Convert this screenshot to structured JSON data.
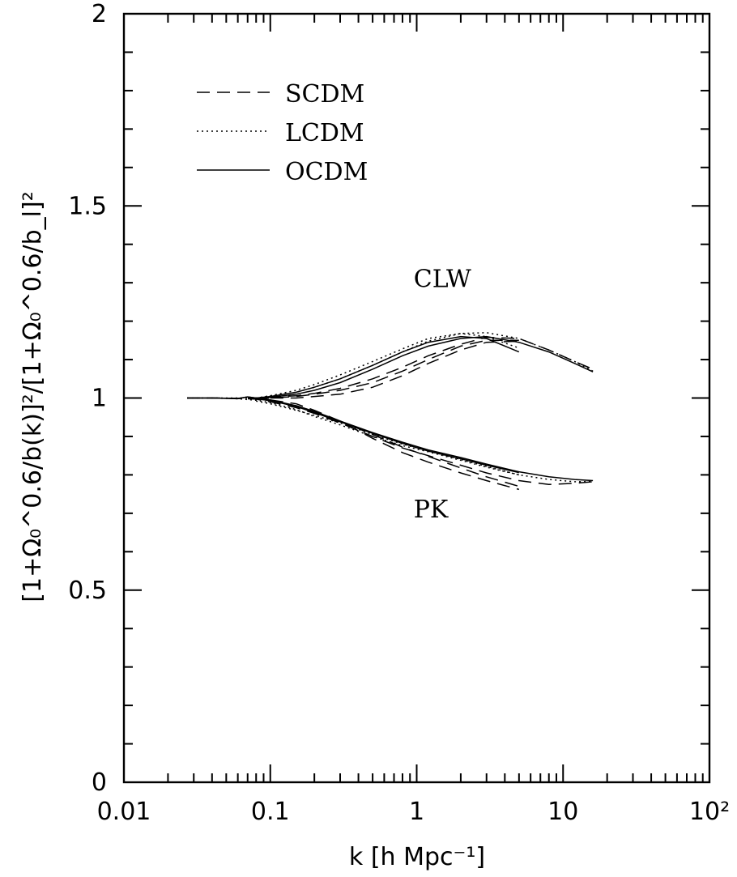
{
  "chart_data": {
    "type": "line",
    "x_scale": "log",
    "xlim": [
      0.01,
      100
    ],
    "ylim": [
      0,
      2
    ],
    "xlabel": "k [h Mpc⁻¹]",
    "ylabel": "[1+Ω₀^0.6/b(k)]²/[1+Ω₀^0.6/b_l]²",
    "x_tick_labels": [
      "0.01",
      "0.1",
      "1",
      "10",
      "10²"
    ],
    "x_tick_values": [
      0.01,
      0.1,
      1,
      10,
      100
    ],
    "y_tick_labels": [
      "0",
      "0.5",
      "1",
      "1.5",
      "2"
    ],
    "y_tick_values": [
      0,
      0.5,
      1,
      1.5,
      2
    ],
    "legend_position": "top-left",
    "legend": [
      {
        "label": "SCDM",
        "style": "dashed"
      },
      {
        "label": "LCDM",
        "style": "dotted"
      },
      {
        "label": "OCDM",
        "style": "solid"
      }
    ],
    "annotations": [
      {
        "text": "CLW",
        "x": 1.5,
        "y": 1.31
      },
      {
        "text": "PK",
        "x": 1.25,
        "y": 0.71
      }
    ],
    "series": [
      {
        "group": "CLW",
        "style": "dashed",
        "x": [
          0.027,
          0.04,
          0.06,
          0.08,
          0.1,
          0.15,
          0.2,
          0.3,
          0.5,
          0.8,
          1.2,
          2,
          3,
          5,
          8,
          12,
          16
        ],
        "y": [
          1.0,
          1.0,
          0.999,
          1.0,
          1.002,
          1.006,
          1.012,
          1.025,
          1.05,
          1.08,
          1.11,
          1.14,
          1.158,
          1.155,
          1.125,
          1.095,
          1.075
        ]
      },
      {
        "group": "CLW",
        "style": "dashed",
        "x": [
          0.08,
          0.1,
          0.15,
          0.2,
          0.3,
          0.5,
          0.8,
          1.2,
          2,
          3,
          5
        ],
        "y": [
          0.998,
          1.0,
          1.004,
          1.01,
          1.02,
          1.04,
          1.07,
          1.1,
          1.135,
          1.15,
          1.15
        ]
      },
      {
        "group": "CLW",
        "style": "dashed",
        "x": [
          0.1,
          0.15,
          0.2,
          0.3,
          0.5,
          0.8,
          1.2,
          2,
          3,
          5
        ],
        "y": [
          1.0,
          1.0,
          1.004,
          1.01,
          1.028,
          1.058,
          1.09,
          1.125,
          1.145,
          1.148
        ]
      },
      {
        "group": "CLW",
        "style": "dotted",
        "x": [
          0.027,
          0.04,
          0.06,
          0.08,
          0.1,
          0.15,
          0.2,
          0.3,
          0.5,
          0.8,
          1.2,
          2,
          3,
          5,
          8,
          12,
          16
        ],
        "y": [
          1.0,
          1.0,
          1.0,
          1.0,
          1.005,
          1.015,
          1.028,
          1.05,
          1.085,
          1.12,
          1.148,
          1.168,
          1.17,
          1.155,
          1.125,
          1.095,
          1.07
        ]
      },
      {
        "group": "CLW",
        "style": "dotted",
        "x": [
          0.08,
          0.1,
          0.15,
          0.2,
          0.3,
          0.5,
          0.8,
          1.2,
          2,
          3,
          5
        ],
        "y": [
          1.0,
          1.006,
          1.02,
          1.035,
          1.06,
          1.095,
          1.128,
          1.155,
          1.168,
          1.16,
          1.13
        ]
      },
      {
        "group": "CLW",
        "style": "solid",
        "x": [
          0.027,
          0.04,
          0.06,
          0.07,
          0.08,
          0.1,
          0.15,
          0.2,
          0.3,
          0.5,
          0.8,
          1.2,
          2,
          3,
          5,
          8,
          12,
          16
        ],
        "y": [
          1.0,
          1.0,
          0.998,
          1.003,
          1.0,
          1.002,
          1.01,
          1.02,
          1.04,
          1.075,
          1.11,
          1.135,
          1.155,
          1.16,
          1.145,
          1.12,
          1.09,
          1.068
        ]
      },
      {
        "group": "CLW",
        "style": "solid",
        "x": [
          0.08,
          0.1,
          0.15,
          0.2,
          0.3,
          0.5,
          0.8,
          1.2,
          2,
          3,
          5
        ],
        "y": [
          1.0,
          1.004,
          1.015,
          1.028,
          1.05,
          1.085,
          1.12,
          1.145,
          1.16,
          1.155,
          1.12
        ]
      },
      {
        "group": "PK",
        "style": "dashed",
        "x": [
          0.027,
          0.04,
          0.06,
          0.08,
          0.1,
          0.15,
          0.2,
          0.3,
          0.5,
          0.8,
          1.2,
          2,
          3,
          5,
          8,
          12,
          16
        ],
        "y": [
          1.0,
          1.0,
          0.999,
          0.997,
          0.99,
          0.975,
          0.96,
          0.935,
          0.9,
          0.87,
          0.85,
          0.825,
          0.805,
          0.785,
          0.775,
          0.778,
          0.782
        ]
      },
      {
        "group": "PK",
        "style": "dashed",
        "x": [
          0.08,
          0.1,
          0.15,
          0.2,
          0.3,
          0.5,
          0.8,
          1.2,
          2,
          3,
          5
        ],
        "y": [
          0.998,
          0.993,
          0.98,
          0.965,
          0.94,
          0.905,
          0.872,
          0.848,
          0.818,
          0.795,
          0.77
        ]
      },
      {
        "group": "PK",
        "style": "dashed",
        "x": [
          0.1,
          0.15,
          0.2,
          0.3,
          0.5,
          0.8,
          1.2,
          2,
          3,
          5
        ],
        "y": [
          0.995,
          0.985,
          0.968,
          0.94,
          0.895,
          0.858,
          0.833,
          0.805,
          0.785,
          0.762
        ]
      },
      {
        "group": "PK",
        "style": "dotted",
        "x": [
          0.027,
          0.04,
          0.06,
          0.08,
          0.1,
          0.15,
          0.2,
          0.3,
          0.5,
          0.8,
          1.2,
          2,
          3,
          5,
          8,
          12,
          16
        ],
        "y": [
          1.0,
          1.0,
          0.998,
          0.994,
          0.988,
          0.97,
          0.952,
          0.93,
          0.9,
          0.876,
          0.86,
          0.838,
          0.82,
          0.8,
          0.788,
          0.782,
          0.783
        ]
      },
      {
        "group": "PK",
        "style": "dotted",
        "x": [
          0.08,
          0.1,
          0.15,
          0.2,
          0.3,
          0.5,
          0.8,
          1.2,
          2,
          3,
          5
        ],
        "y": [
          0.992,
          0.985,
          0.968,
          0.955,
          0.935,
          0.905,
          0.88,
          0.862,
          0.84,
          0.822,
          0.8
        ]
      },
      {
        "group": "PK",
        "style": "solid",
        "x": [
          0.027,
          0.04,
          0.06,
          0.07,
          0.08,
          0.1,
          0.15,
          0.2,
          0.3,
          0.5,
          0.8,
          1.2,
          2,
          3,
          5,
          8,
          12,
          16
        ],
        "y": [
          1.0,
          1.0,
          0.999,
          1.003,
          1.0,
          0.995,
          0.98,
          0.965,
          0.94,
          0.91,
          0.885,
          0.865,
          0.845,
          0.828,
          0.808,
          0.795,
          0.788,
          0.785
        ]
      },
      {
        "group": "PK",
        "style": "solid",
        "x": [
          0.08,
          0.1,
          0.15,
          0.2,
          0.3,
          0.5,
          0.8,
          1.2,
          2,
          3,
          5
        ],
        "y": [
          0.998,
          0.993,
          0.978,
          0.962,
          0.938,
          0.908,
          0.882,
          0.862,
          0.842,
          0.825,
          0.806
        ]
      }
    ]
  }
}
